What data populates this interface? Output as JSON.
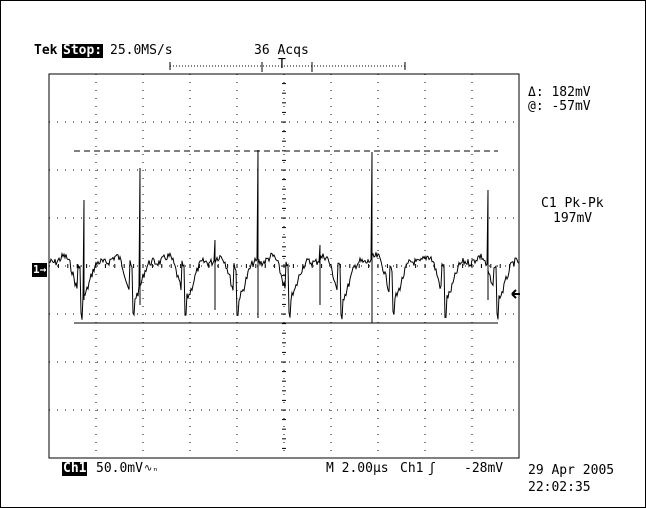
{
  "header": {
    "brand": "Tek",
    "run_state": "Stop:",
    "sample_rate": "25.0MS/s",
    "acquisitions": "36 Acqs",
    "trigger_marker": "T"
  },
  "cursor_readout": {
    "delta": "Δ: 182mV",
    "at": "@: -57mV"
  },
  "measurement": {
    "label": "C1 Pk-Pk",
    "value": "197mV"
  },
  "channel_marker": "1→",
  "footer": {
    "channel": "Ch1",
    "volts_per_div": "50.0mV",
    "bw_symbol": "∿ₙ",
    "timebase": "M 2.00µs",
    "trigger_source": "Ch1",
    "trigger_slope": "ʃ",
    "trigger_level": "-28mV",
    "date": "29 Apr 2005",
    "time": "22:02:35"
  },
  "colors": {
    "trace": "#000000",
    "grid": "#000000",
    "background": "#ffffff"
  }
}
